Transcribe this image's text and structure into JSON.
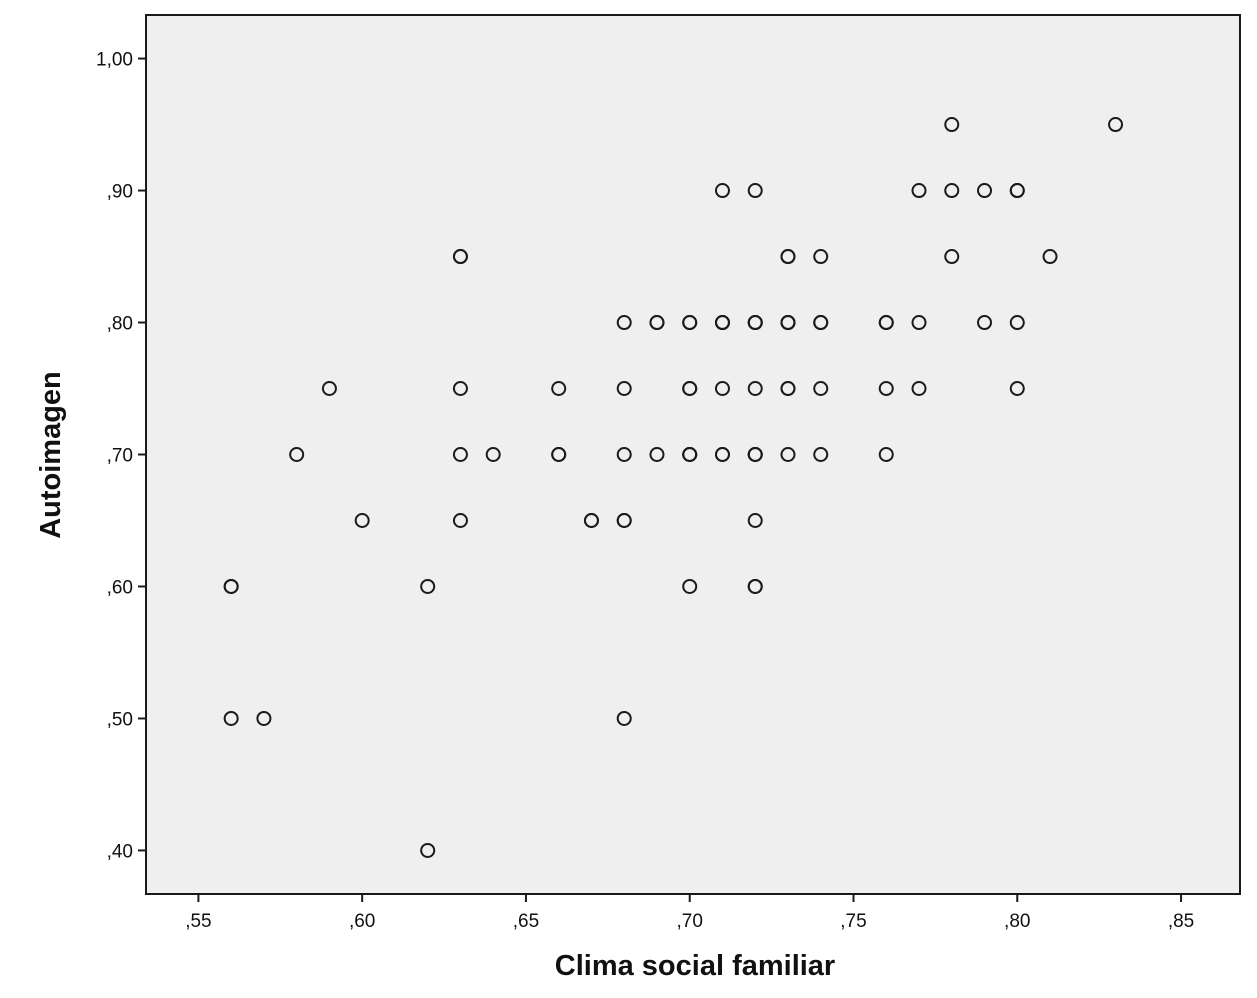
{
  "chart_data": {
    "type": "scatter",
    "xlabel": "Clima social familiar",
    "ylabel": "Autoimagen",
    "xlim": [
      0.534,
      0.868
    ],
    "ylim": [
      0.367,
      1.033
    ],
    "x_ticks": [
      0.55,
      0.6,
      0.65,
      0.7,
      0.75,
      0.8,
      0.85
    ],
    "x_tick_labels": [
      ",55",
      ",60",
      ",65",
      ",70",
      ",75",
      ",80",
      ",85"
    ],
    "y_ticks": [
      0.4,
      0.5,
      0.6,
      0.7,
      0.8,
      0.9,
      1.0
    ],
    "y_tick_labels": [
      ",40",
      ",50",
      ",60",
      ",70",
      ",80",
      ",90",
      "1,00"
    ],
    "grid": false,
    "plot_background": "#efefef",
    "marker": "open-circle",
    "marker_color": "#1a1a1a",
    "points": [
      [
        0.56,
        0.6
      ],
      [
        0.56,
        0.6
      ],
      [
        0.56,
        0.5
      ],
      [
        0.57,
        0.5
      ],
      [
        0.58,
        0.7
      ],
      [
        0.59,
        0.75
      ],
      [
        0.6,
        0.65
      ],
      [
        0.62,
        0.6
      ],
      [
        0.62,
        0.4
      ],
      [
        0.63,
        0.85
      ],
      [
        0.63,
        0.85
      ],
      [
        0.63,
        0.75
      ],
      [
        0.63,
        0.7
      ],
      [
        0.63,
        0.65
      ],
      [
        0.64,
        0.7
      ],
      [
        0.66,
        0.75
      ],
      [
        0.66,
        0.7
      ],
      [
        0.66,
        0.7
      ],
      [
        0.67,
        0.65
      ],
      [
        0.67,
        0.65
      ],
      [
        0.68,
        0.8
      ],
      [
        0.68,
        0.75
      ],
      [
        0.68,
        0.7
      ],
      [
        0.68,
        0.65
      ],
      [
        0.68,
        0.65
      ],
      [
        0.68,
        0.5
      ],
      [
        0.69,
        0.8
      ],
      [
        0.69,
        0.8
      ],
      [
        0.69,
        0.7
      ],
      [
        0.7,
        0.8
      ],
      [
        0.7,
        0.8
      ],
      [
        0.7,
        0.75
      ],
      [
        0.7,
        0.75
      ],
      [
        0.7,
        0.7
      ],
      [
        0.7,
        0.7
      ],
      [
        0.7,
        0.7
      ],
      [
        0.7,
        0.6
      ],
      [
        0.71,
        0.9
      ],
      [
        0.71,
        0.8
      ],
      [
        0.71,
        0.8
      ],
      [
        0.71,
        0.8
      ],
      [
        0.71,
        0.75
      ],
      [
        0.71,
        0.7
      ],
      [
        0.71,
        0.7
      ],
      [
        0.72,
        0.9
      ],
      [
        0.72,
        0.8
      ],
      [
        0.72,
        0.8
      ],
      [
        0.72,
        0.8
      ],
      [
        0.72,
        0.75
      ],
      [
        0.72,
        0.7
      ],
      [
        0.72,
        0.7
      ],
      [
        0.72,
        0.7
      ],
      [
        0.72,
        0.65
      ],
      [
        0.72,
        0.6
      ],
      [
        0.72,
        0.6
      ],
      [
        0.73,
        0.85
      ],
      [
        0.73,
        0.85
      ],
      [
        0.73,
        0.8
      ],
      [
        0.73,
        0.8
      ],
      [
        0.73,
        0.8
      ],
      [
        0.73,
        0.75
      ],
      [
        0.73,
        0.75
      ],
      [
        0.73,
        0.7
      ],
      [
        0.74,
        0.85
      ],
      [
        0.74,
        0.8
      ],
      [
        0.74,
        0.8
      ],
      [
        0.74,
        0.75
      ],
      [
        0.74,
        0.7
      ],
      [
        0.76,
        0.8
      ],
      [
        0.76,
        0.8
      ],
      [
        0.76,
        0.75
      ],
      [
        0.76,
        0.7
      ],
      [
        0.77,
        0.9
      ],
      [
        0.77,
        0.8
      ],
      [
        0.77,
        0.75
      ],
      [
        0.78,
        0.95
      ],
      [
        0.78,
        0.9
      ],
      [
        0.78,
        0.85
      ],
      [
        0.79,
        0.9
      ],
      [
        0.79,
        0.8
      ],
      [
        0.8,
        0.9
      ],
      [
        0.8,
        0.9
      ],
      [
        0.8,
        0.8
      ],
      [
        0.8,
        0.75
      ],
      [
        0.81,
        0.85
      ],
      [
        0.83,
        0.95
      ]
    ]
  }
}
